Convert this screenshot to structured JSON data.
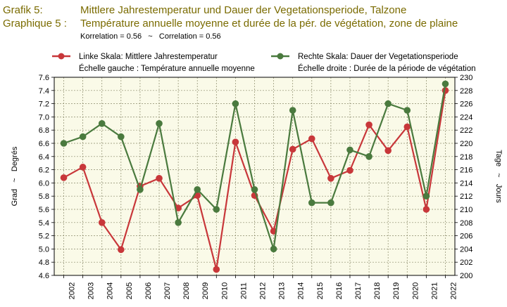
{
  "header": {
    "label_de": "Grafik 5:",
    "label_fr": "Graphique 5 :",
    "title_de": "Mittlere Jahrestemperatur und Dauer der Vegetationsperiode, Talzone",
    "title_fr": "Température annuelle moyenne et durée de la pér. de végétation, zone de plaine",
    "correlation": "Korrelation = 0.56   ~   Correlation = 0.56"
  },
  "chart_data": {
    "type": "line",
    "x": [
      "2002",
      "2003",
      "2004",
      "2005",
      "2006",
      "2007",
      "2008",
      "2009",
      "2010",
      "2011",
      "2012",
      "2013",
      "2014",
      "2015",
      "2016",
      "2017",
      "2018",
      "2019",
      "2020",
      "2021",
      "2022"
    ],
    "series": [
      {
        "name_de": "Linke Skala: Mittlere Jahrestemperatur",
        "name_fr": "Échelle gauche : Température annuelle moyenne",
        "axis": "left",
        "color": "#c8373a",
        "values": [
          6.08,
          6.24,
          5.4,
          4.99,
          5.95,
          6.07,
          5.62,
          5.81,
          4.69,
          6.62,
          5.81,
          5.27,
          6.51,
          6.67,
          6.07,
          6.19,
          6.88,
          6.49,
          6.85,
          5.6,
          7.4
        ]
      },
      {
        "name_de": "Rechte Skala: Dauer der Vegetationsperiode",
        "name_fr": "Échelle droite : Durée de la période de végétation",
        "axis": "right",
        "color": "#4a7a3e",
        "values": [
          220,
          221,
          223,
          221,
          213,
          223,
          208,
          213,
          210,
          226,
          213,
          204,
          225,
          211,
          211,
          219,
          218,
          226,
          225,
          212,
          229
        ]
      }
    ],
    "y_left": {
      "label": "Grad   ~   Degrés",
      "min": 4.6,
      "max": 7.6,
      "step": 0.2,
      "ticks": [
        "4.6",
        "4.8",
        "5.0",
        "5.2",
        "5.4",
        "5.6",
        "5.8",
        "6.0",
        "6.2",
        "6.4",
        "6.6",
        "6.8",
        "7.0",
        "7.2",
        "7.4",
        "7.6"
      ]
    },
    "y_right": {
      "label": "Tage   ~   Jours",
      "min": 200,
      "max": 230,
      "step": 2,
      "ticks": [
        "200",
        "202",
        "204",
        "206",
        "208",
        "210",
        "212",
        "214",
        "216",
        "218",
        "220",
        "222",
        "224",
        "226",
        "228",
        "230"
      ]
    },
    "grid": true,
    "plot_background": "#fafae8"
  }
}
